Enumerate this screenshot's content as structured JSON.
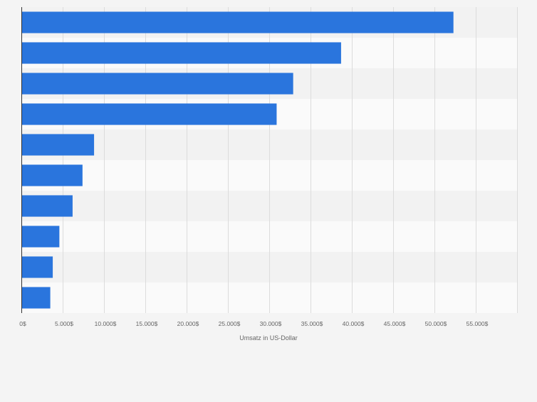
{
  "chart_data": {
    "type": "bar",
    "orientation": "horizontal",
    "title": "",
    "xlabel": "Umsatz in US-Dollar",
    "ylabel": "",
    "categories": [
      "",
      "",
      "",
      "",
      "",
      "",
      "",
      "",
      "",
      ""
    ],
    "values": [
      52300,
      38700,
      32900,
      30900,
      8800,
      7400,
      6200,
      4600,
      3800,
      3500
    ],
    "xlim": [
      0,
      60000
    ],
    "xticks": [
      0,
      5000,
      10000,
      15000,
      20000,
      25000,
      30000,
      35000,
      40000,
      45000,
      50000,
      55000
    ],
    "xtick_labels": [
      "0$",
      "5.000$",
      "10.000$",
      "15.000$",
      "20.000$",
      "25.000$",
      "30.000$",
      "35.000$",
      "40.000$",
      "45.000$",
      "50.000$",
      "55.000$"
    ],
    "grid": "vertical",
    "bar_color": "#2a75dd",
    "legend": "none"
  }
}
